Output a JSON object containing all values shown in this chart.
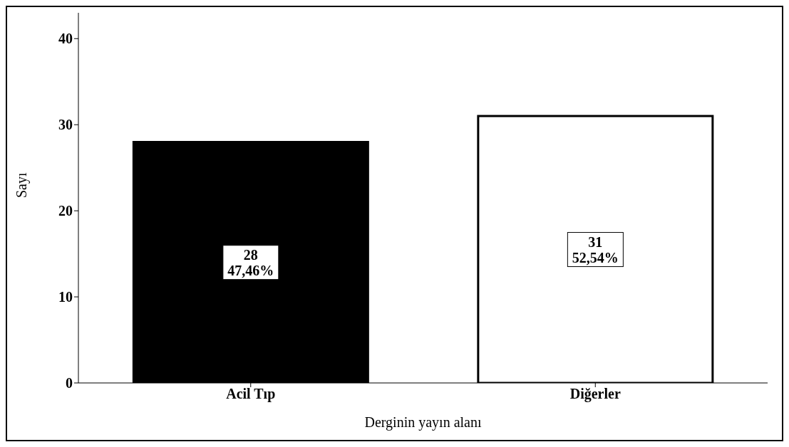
{
  "chart_data": {
    "type": "bar",
    "categories": [
      "Acil Tıp",
      "Diğerler"
    ],
    "values": [
      28,
      31
    ],
    "colors": [
      "#000000",
      "#ffffff"
    ],
    "value_labels": [
      "28\n47,46%",
      "31\n52,54%"
    ],
    "xlabel": "Derginin yayın alanı",
    "ylabel": "Sayı",
    "ylim": [
      0,
      43
    ],
    "yticks": [
      0,
      10,
      20,
      30,
      40
    ],
    "grid": false,
    "legend": false
  }
}
